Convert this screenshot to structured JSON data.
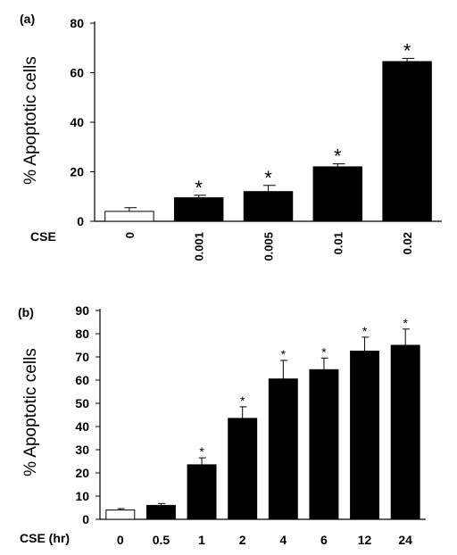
{
  "chart_data": [
    {
      "panel_label": "(a)",
      "type": "bar",
      "ylabel": "% Apoptotic cells",
      "xlabel": "CSE",
      "ylim": [
        0,
        80
      ],
      "yticks": [
        "0",
        "20",
        "40",
        "60",
        "80"
      ],
      "categories": [
        "0",
        "0.001",
        "0.005",
        "0.01",
        "0.02"
      ],
      "values": [
        4,
        9.5,
        12,
        22,
        64.5
      ],
      "errors": [
        1.5,
        1,
        2.5,
        1.2,
        1.3
      ],
      "significance": [
        "",
        "*",
        "*",
        "*",
        "*"
      ],
      "bar_fill": [
        "#ffffff",
        "#000000",
        "#000000",
        "#000000",
        "#000000"
      ]
    },
    {
      "panel_label": "(b)",
      "type": "bar",
      "ylabel": "% Apoptotic cells",
      "xlabel": "CSE (hr)",
      "ylim": [
        0,
        90
      ],
      "yticks": [
        "0",
        "10",
        "20",
        "30",
        "40",
        "50",
        "60",
        "70",
        "80",
        "90"
      ],
      "categories": [
        "0",
        "0.5",
        "1",
        "2",
        "4",
        "6",
        "12",
        "24"
      ],
      "values": [
        4,
        6,
        23.5,
        43.5,
        60.5,
        64.5,
        72.5,
        75
      ],
      "errors": [
        0.6,
        0.8,
        3,
        5,
        8,
        5,
        6,
        7
      ],
      "significance": [
        "",
        "",
        "*",
        "*",
        "*",
        "*",
        "*",
        "*"
      ],
      "bar_fill": [
        "#ffffff",
        "#000000",
        "#000000",
        "#000000",
        "#000000",
        "#000000",
        "#000000",
        "#000000"
      ]
    }
  ]
}
